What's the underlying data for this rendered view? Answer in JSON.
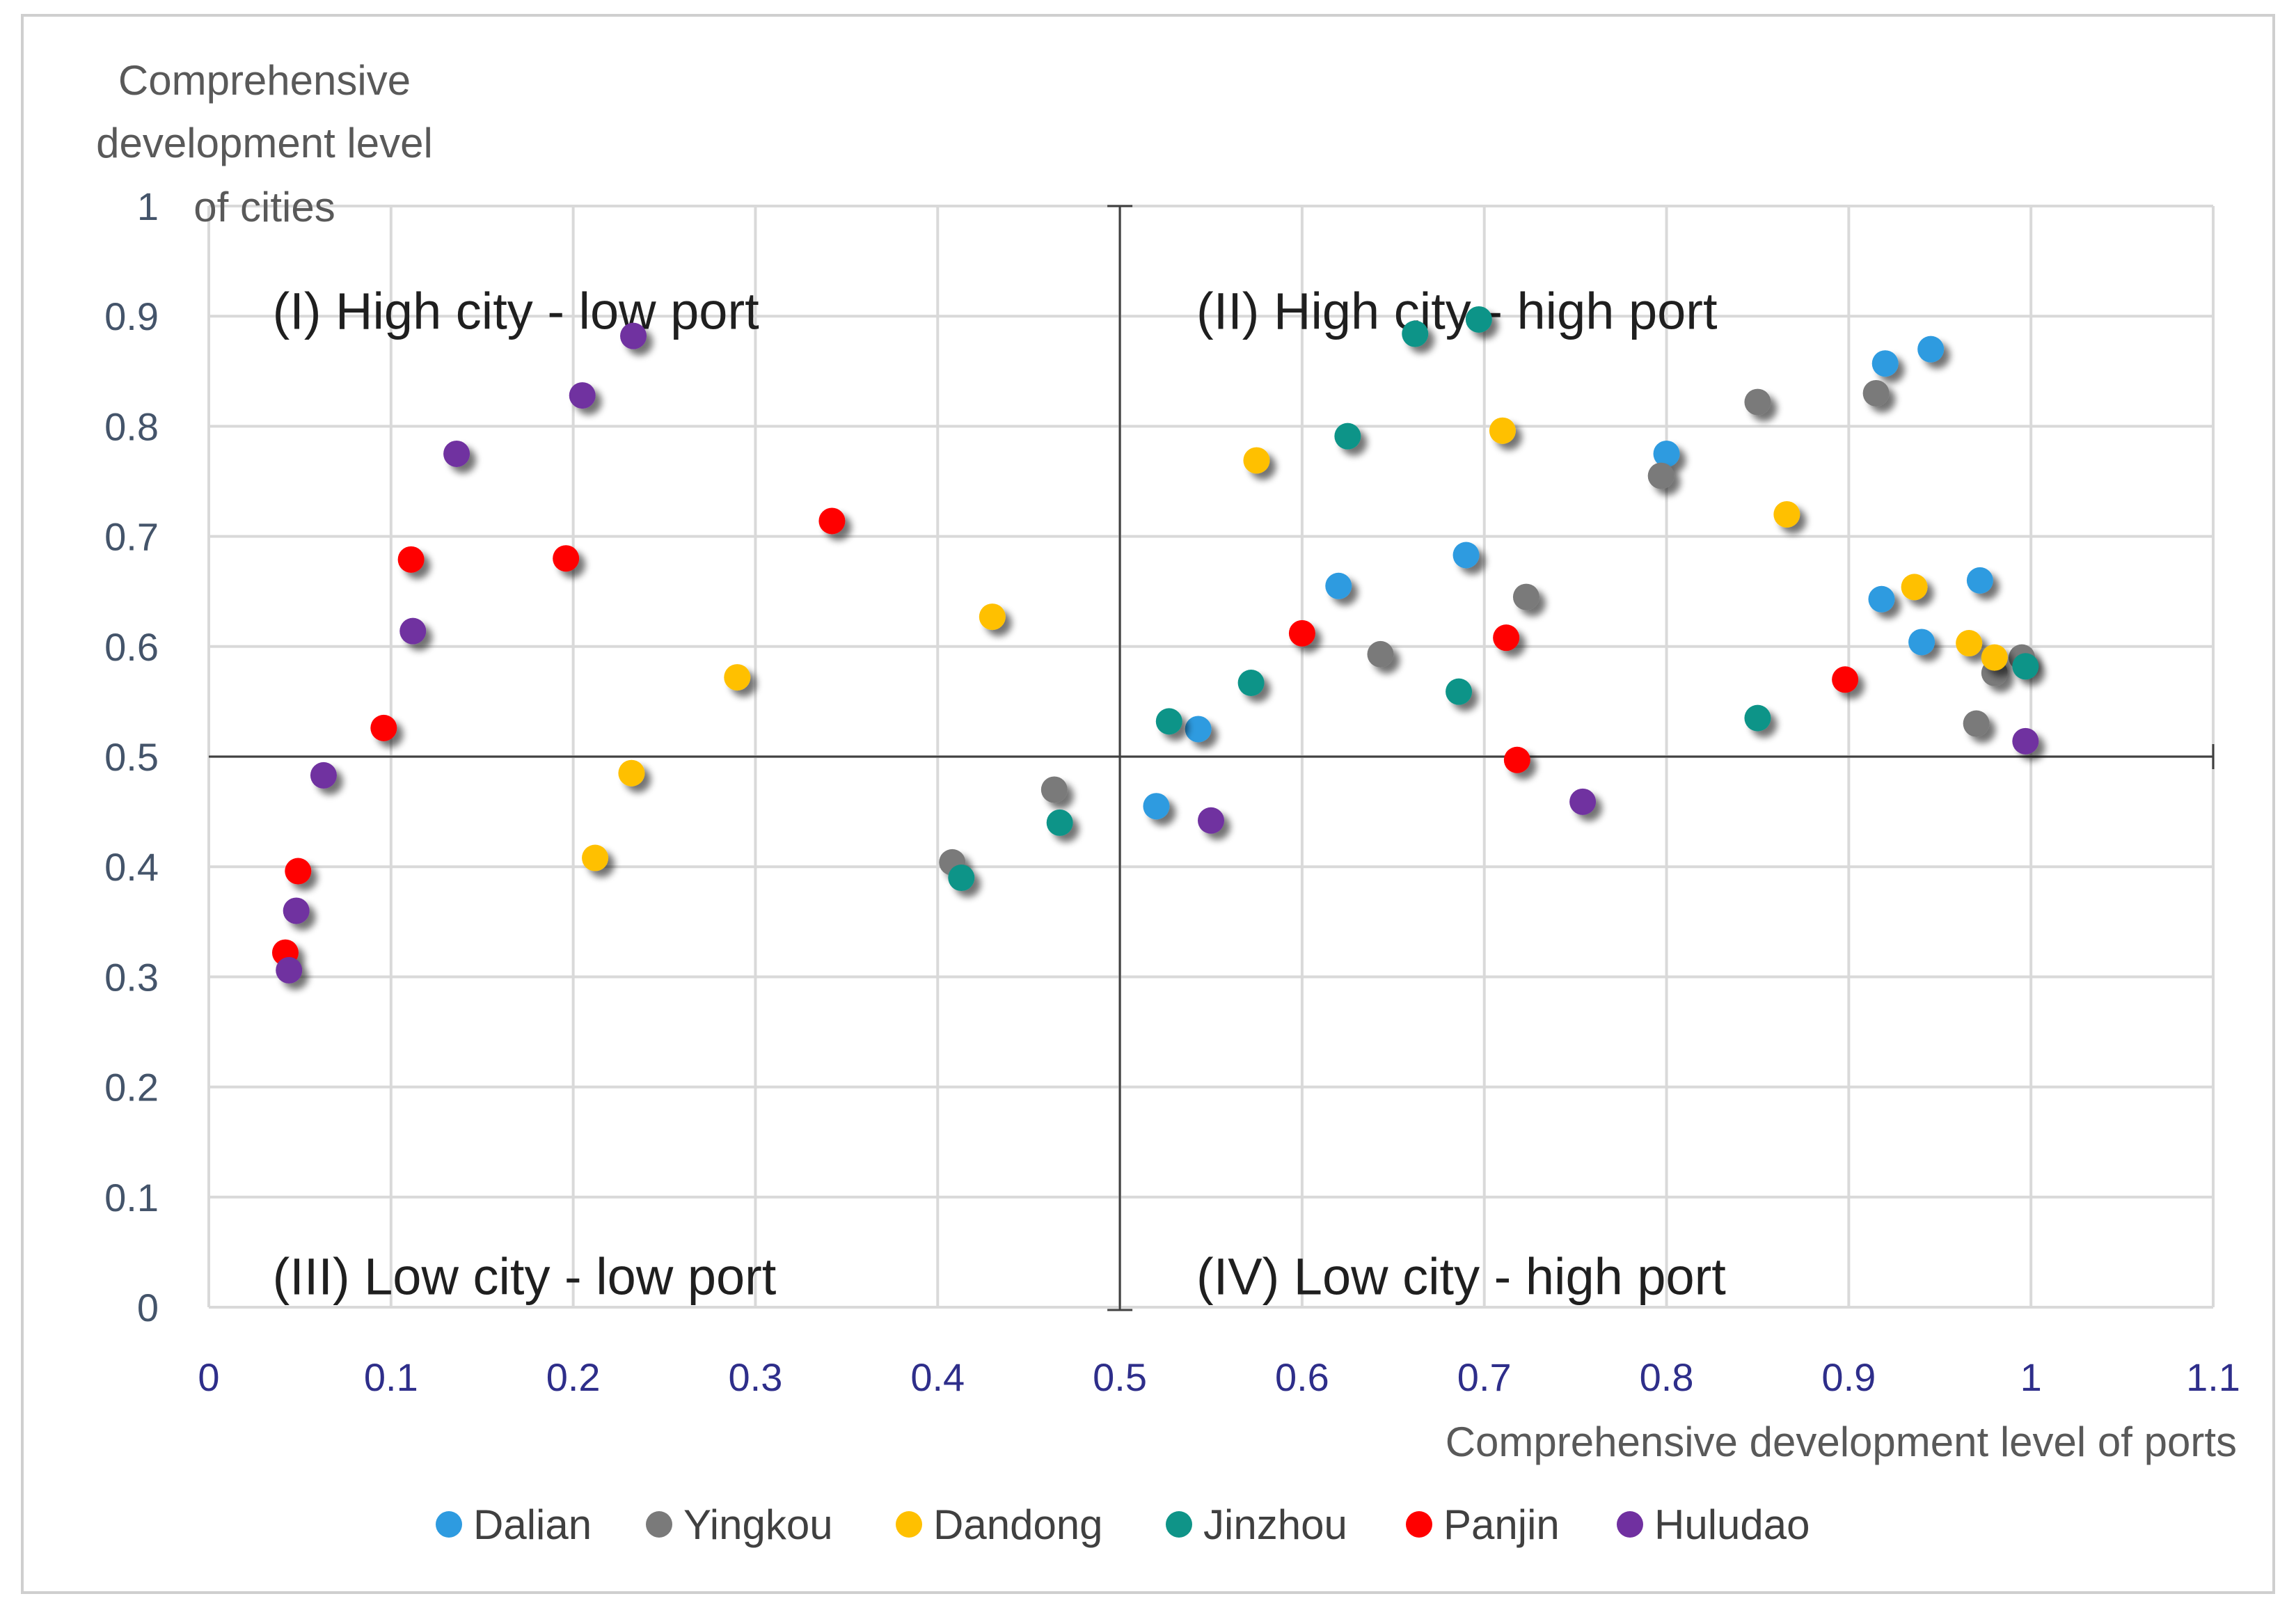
{
  "chart_data": {
    "type": "scatter",
    "title": "",
    "xlabel": "Comprehensive development level of  ports",
    "ylabel_lines": [
      "Comprehensive",
      "development level",
      "of cities"
    ],
    "xlim": [
      0,
      1.1
    ],
    "ylim": [
      0,
      1
    ],
    "x_ticks": [
      "0",
      "0.1",
      "0.2",
      "0.3",
      "0.4",
      "0.5",
      "0.6",
      "0.7",
      "0.8",
      "0.9",
      "1",
      "1.1"
    ],
    "y_ticks": [
      "0",
      "0.1",
      "0.2",
      "0.3",
      "0.4",
      "0.5",
      "0.6",
      "0.7",
      "0.8",
      "0.9",
      "1"
    ],
    "grid": true,
    "legend_position": "bottom",
    "divider": {
      "x": 0.5,
      "y": 0.5
    },
    "quadrants": [
      {
        "label": "(I) High city - low port",
        "anchor_x": 0.035,
        "anchor_y": 0.905
      },
      {
        "label": "(II) High city - high port",
        "anchor_x": 0.542,
        "anchor_y": 0.905
      },
      {
        "label": "(III) Low city - low port",
        "anchor_x": 0.035,
        "anchor_y": 0.028
      },
      {
        "label": "(IV) Low city - high port",
        "anchor_x": 0.542,
        "anchor_y": 0.028
      }
    ],
    "series": [
      {
        "name": "Dalian",
        "color": "#2e9be0",
        "points": [
          [
            0.52,
            0.455
          ],
          [
            0.543,
            0.525
          ],
          [
            0.62,
            0.655
          ],
          [
            0.69,
            0.683
          ],
          [
            0.8,
            0.775
          ],
          [
            0.92,
            0.857
          ],
          [
            0.945,
            0.87
          ],
          [
            0.918,
            0.643
          ],
          [
            0.94,
            0.604
          ],
          [
            0.972,
            0.66
          ]
        ]
      },
      {
        "name": "Yingkou",
        "color": "#7a7a7a",
        "points": [
          [
            0.408,
            0.404
          ],
          [
            0.464,
            0.47
          ],
          [
            0.643,
            0.593
          ],
          [
            0.723,
            0.645
          ],
          [
            0.797,
            0.755
          ],
          [
            0.85,
            0.822
          ],
          [
            0.915,
            0.83
          ],
          [
            0.97,
            0.53
          ],
          [
            0.98,
            0.576
          ],
          [
            0.995,
            0.59
          ]
        ]
      },
      {
        "name": "Dandong",
        "color": "#ffc000",
        "points": [
          [
            0.212,
            0.408
          ],
          [
            0.232,
            0.485
          ],
          [
            0.29,
            0.572
          ],
          [
            0.43,
            0.627
          ],
          [
            0.575,
            0.769
          ],
          [
            0.71,
            0.796
          ],
          [
            0.866,
            0.72
          ],
          [
            0.936,
            0.654
          ],
          [
            0.966,
            0.603
          ],
          [
            0.98,
            0.59
          ]
        ]
      },
      {
        "name": "Jinzhou",
        "color": "#0f9488",
        "points": [
          [
            0.413,
            0.39
          ],
          [
            0.467,
            0.44
          ],
          [
            0.527,
            0.532
          ],
          [
            0.572,
            0.567
          ],
          [
            0.625,
            0.791
          ],
          [
            0.662,
            0.884
          ],
          [
            0.697,
            0.897
          ],
          [
            0.686,
            0.559
          ],
          [
            0.85,
            0.535
          ],
          [
            0.997,
            0.582
          ]
        ]
      },
      {
        "name": "Panjin",
        "color": "#ff0000",
        "points": [
          [
            0.042,
            0.322
          ],
          [
            0.049,
            0.396
          ],
          [
            0.096,
            0.526
          ],
          [
            0.111,
            0.679
          ],
          [
            0.196,
            0.68
          ],
          [
            0.342,
            0.714
          ],
          [
            0.6,
            0.612
          ],
          [
            0.712,
            0.608
          ],
          [
            0.718,
            0.497
          ],
          [
            0.898,
            0.57
          ]
        ]
      },
      {
        "name": "Huludao",
        "color": "#7030a0",
        "points": [
          [
            0.044,
            0.306
          ],
          [
            0.048,
            0.36
          ],
          [
            0.063,
            0.483
          ],
          [
            0.112,
            0.614
          ],
          [
            0.136,
            0.775
          ],
          [
            0.205,
            0.828
          ],
          [
            0.233,
            0.882
          ],
          [
            0.55,
            0.442
          ],
          [
            0.754,
            0.459
          ],
          [
            0.997,
            0.514
          ]
        ]
      }
    ]
  }
}
